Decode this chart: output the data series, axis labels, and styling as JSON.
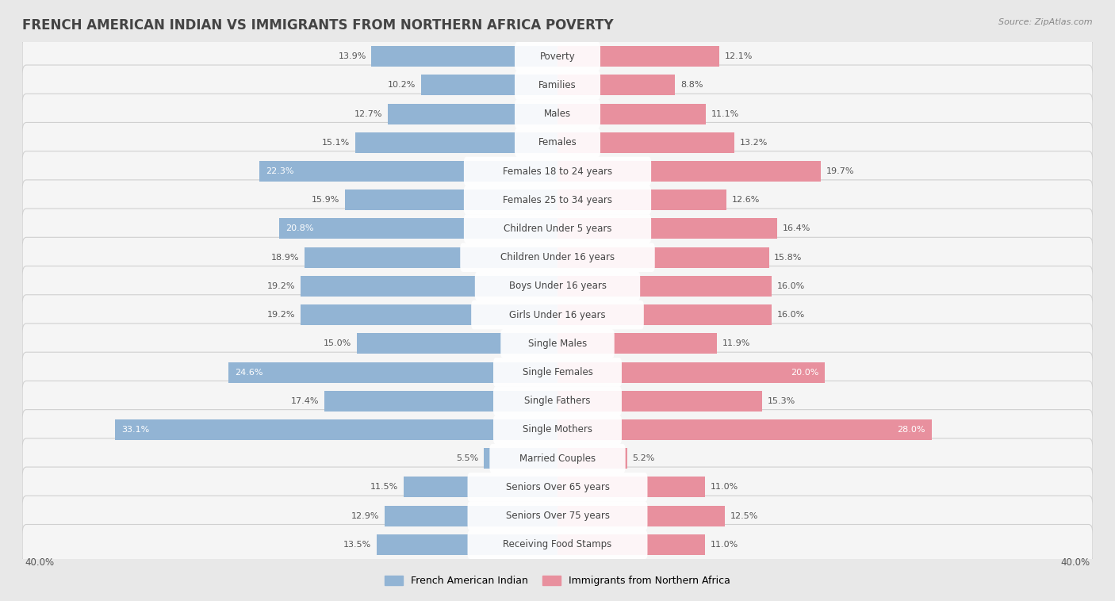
{
  "title": "FRENCH AMERICAN INDIAN VS IMMIGRANTS FROM NORTHERN AFRICA POVERTY",
  "source": "Source: ZipAtlas.com",
  "categories": [
    "Poverty",
    "Families",
    "Males",
    "Females",
    "Females 18 to 24 years",
    "Females 25 to 34 years",
    "Children Under 5 years",
    "Children Under 16 years",
    "Boys Under 16 years",
    "Girls Under 16 years",
    "Single Males",
    "Single Females",
    "Single Fathers",
    "Single Mothers",
    "Married Couples",
    "Seniors Over 65 years",
    "Seniors Over 75 years",
    "Receiving Food Stamps"
  ],
  "left_values": [
    13.9,
    10.2,
    12.7,
    15.1,
    22.3,
    15.9,
    20.8,
    18.9,
    19.2,
    19.2,
    15.0,
    24.6,
    17.4,
    33.1,
    5.5,
    11.5,
    12.9,
    13.5
  ],
  "right_values": [
    12.1,
    8.8,
    11.1,
    13.2,
    19.7,
    12.6,
    16.4,
    15.8,
    16.0,
    16.0,
    11.9,
    20.0,
    15.3,
    28.0,
    5.2,
    11.0,
    12.5,
    11.0
  ],
  "left_color": "#92b4d4",
  "right_color": "#e8909e",
  "left_label": "French American Indian",
  "right_label": "Immigrants from Northern Africa",
  "axis_max": 40.0,
  "background_color": "#e8e8e8",
  "row_bg_color": "#f5f5f5",
  "row_border_color": "#d0d0d0",
  "title_color": "#444444",
  "source_color": "#888888",
  "label_color": "#444444",
  "value_color_dark": "#555555",
  "value_color_light": "#ffffff",
  "title_fontsize": 12,
  "label_fontsize": 8.5,
  "value_fontsize": 8,
  "source_fontsize": 8,
  "white_label_threshold": 20.0
}
